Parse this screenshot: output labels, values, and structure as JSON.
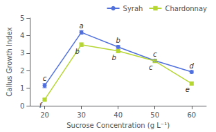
{
  "chart_data": {
    "type": "line",
    "xlabel": "Sucrose Concentration (g L⁻¹)",
    "ylabel": "Callus Growth Index",
    "x": [
      20,
      30,
      40,
      50,
      60
    ],
    "series": [
      {
        "name": "Syrah",
        "marker": "circle",
        "values": [
          1.15,
          4.18,
          3.35,
          2.57,
          1.93
        ],
        "errors": [
          0.12,
          0.1,
          0.08,
          0.07,
          0.07
        ],
        "annotations": [
          "c",
          "a",
          "b",
          "c",
          "d"
        ]
      },
      {
        "name": "Chardonnay",
        "marker": "square",
        "values": [
          0.35,
          3.48,
          3.12,
          2.55,
          1.27
        ],
        "errors": [
          0.06,
          0.1,
          0.09,
          0.08,
          0.08
        ],
        "annotations": [
          "f",
          "b",
          "b",
          "c",
          "e"
        ]
      }
    ],
    "xlim": [
      16,
      64
    ],
    "xticks": [
      20,
      30,
      40,
      50,
      60
    ],
    "ylim": [
      0,
      5
    ],
    "yticks": [
      0,
      1,
      2,
      3,
      4,
      5
    ],
    "grid": false,
    "legend": "upper right"
  }
}
